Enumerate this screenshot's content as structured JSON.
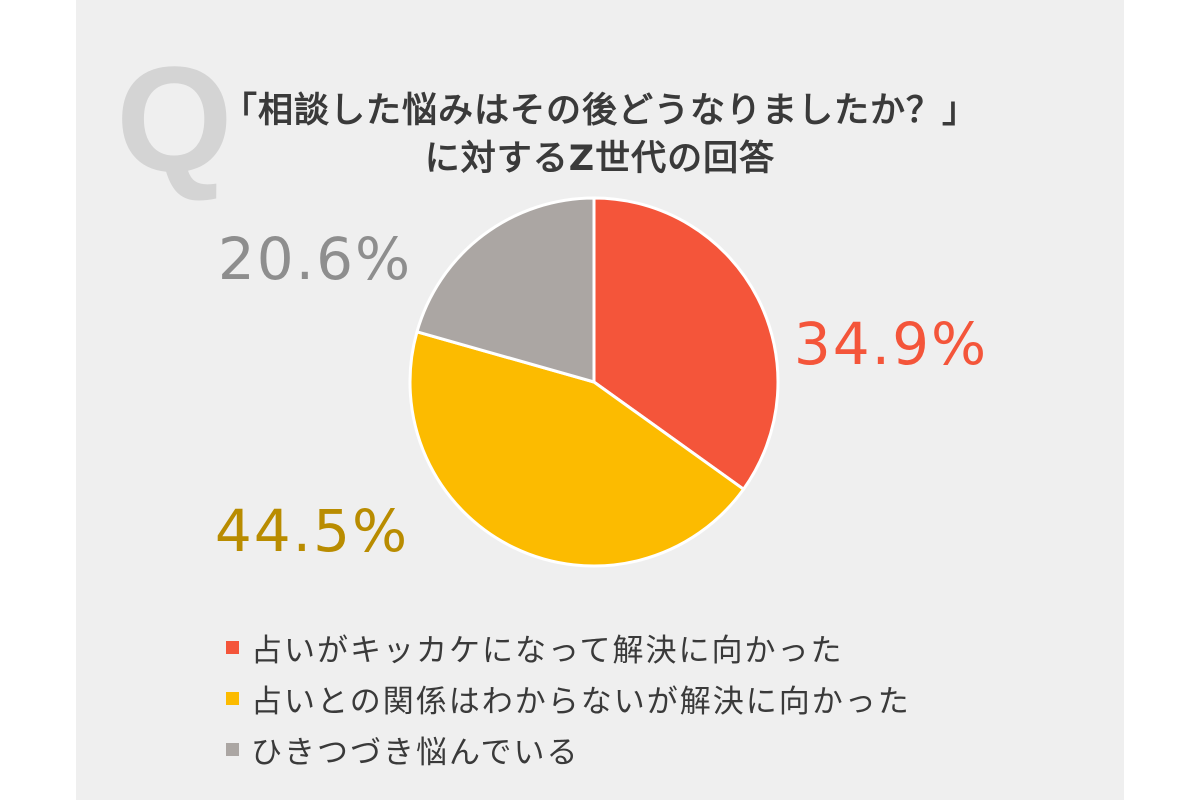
{
  "title": {
    "mark": "Q",
    "line1": "「相談した悩みはその後どうなりましたか？」",
    "line2": "に対するZ世代の回答"
  },
  "chart_data": {
    "type": "pie",
    "start_angle_deg": 0,
    "direction": "clockwise",
    "slices": [
      {
        "label": "占いがキッカケになって解決に向かった",
        "value": 34.9,
        "display": "34.9%",
        "color": "#f4553a",
        "label_color": "#f4553a"
      },
      {
        "label": "占いとの関係はわからないが解決に向かった",
        "value": 44.5,
        "display": "44.5%",
        "color": "#fcbb00",
        "label_color": "#b98c00"
      },
      {
        "label": "ひきつづき悩んでいる",
        "value": 20.6,
        "display": "20.6%",
        "color": "#aba6a3",
        "label_color": "#8e8e8e"
      }
    ],
    "legend_position": "bottom-left"
  }
}
